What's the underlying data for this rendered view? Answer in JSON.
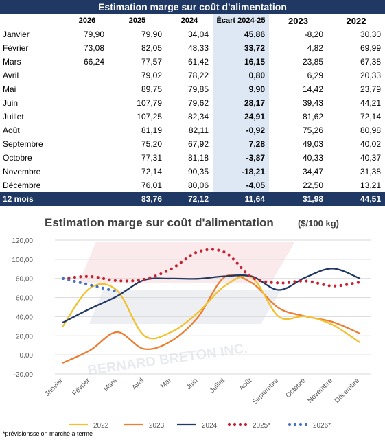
{
  "table": {
    "title": "Estimation marge sur coût d'alimentation",
    "headers": {
      "month": "",
      "c2026": "2026",
      "c2025": "2025",
      "c2024": "2024",
      "ecart": "Écart 2024-25",
      "c2023": "2023",
      "c2022": "2022"
    },
    "rows": [
      {
        "month": "Janvier",
        "c2026": "79,90",
        "c2025": "79,90",
        "c2024": "34,04",
        "ecart": "45,86",
        "c2023": "-8,20",
        "c2022": "30,30"
      },
      {
        "month": "Février",
        "c2026": "73,08",
        "c2025": "82,05",
        "c2024": "48,33",
        "ecart": "33,72",
        "c2023": "4,82",
        "c2022": "69,99"
      },
      {
        "month": "Mars",
        "c2026": "66,24",
        "c2025": "77,57",
        "c2024": "61,42",
        "ecart": "16,15",
        "c2023": "23,85",
        "c2022": "67,38"
      },
      {
        "month": "Avril",
        "c2026": "",
        "c2025": "79,02",
        "c2024": "78,22",
        "ecart": "0,80",
        "c2023": "6,29",
        "c2022": "20,33"
      },
      {
        "month": "Mai",
        "c2026": "",
        "c2025": "89,75",
        "c2024": "79,85",
        "ecart": "9,90",
        "c2023": "14,42",
        "c2022": "23,79"
      },
      {
        "month": "Juin",
        "c2026": "",
        "c2025": "107,79",
        "c2024": "79,62",
        "ecart": "28,17",
        "c2023": "39,43",
        "c2022": "44,21"
      },
      {
        "month": "Juillet",
        "c2026": "",
        "c2025": "107,25",
        "c2024": "82,34",
        "ecart": "24,91",
        "c2023": "81,62",
        "c2022": "72,14"
      },
      {
        "month": "Août",
        "c2026": "",
        "c2025": "81,19",
        "c2024": "82,11",
        "ecart": "-0,92",
        "c2023": "75,26",
        "c2022": "80,98"
      },
      {
        "month": "Septembre",
        "c2026": "",
        "c2025": "75,20",
        "c2024": "67,92",
        "ecart": "7,28",
        "c2023": "49,03",
        "c2022": "40,02"
      },
      {
        "month": "Octobre",
        "c2026": "",
        "c2025": "77,31",
        "c2024": "81,18",
        "ecart": "-3,87",
        "c2023": "40,33",
        "c2022": "40,37"
      },
      {
        "month": "Novembre",
        "c2026": "",
        "c2025": "72,14",
        "c2024": "90,35",
        "ecart": "-18,21",
        "c2023": "34,47",
        "c2022": "31,38"
      },
      {
        "month": "Décembre",
        "c2026": "",
        "c2025": "76,01",
        "c2024": "80,06",
        "ecart": "-4,05",
        "c2023": "22,50",
        "c2022": "13,21"
      }
    ],
    "total": {
      "month": "12 mois",
      "c2026": "",
      "c2025": "83,76",
      "c2024": "72,12",
      "ecart": "11,64",
      "c2023": "31,98",
      "c2022": "44,51"
    }
  },
  "chart_data": {
    "type": "line",
    "title": "Estimation  marge sur coût d'alimentation",
    "subtitle": "($/100 kg)",
    "categories": [
      "Janvier",
      "Février",
      "Mars",
      "Avril",
      "Mai",
      "Juin",
      "Juillet",
      "Août",
      "Septembre",
      "Octobre",
      "Novembre",
      "Décembre"
    ],
    "ylim": [
      -20,
      120
    ],
    "yticks": [
      "120,00",
      "100,00",
      "80,00",
      "60,00",
      "40,00",
      "20,00",
      "0,00",
      "-20,00"
    ],
    "ytick_values": [
      120,
      100,
      80,
      60,
      40,
      20,
      0,
      -20
    ],
    "grid": true,
    "legend_position": "bottom",
    "series": [
      {
        "name": "2022",
        "style": "line",
        "color": "#f2c12e",
        "values": [
          30.3,
          69.99,
          67.38,
          20.33,
          23.79,
          44.21,
          72.14,
          80.98,
          40.02,
          40.37,
          31.38,
          13.21
        ]
      },
      {
        "name": "2023",
        "style": "line",
        "color": "#ed7d31",
        "values": [
          -8.2,
          4.82,
          23.85,
          6.29,
          14.42,
          39.43,
          81.62,
          75.26,
          49.03,
          40.33,
          34.47,
          22.5
        ]
      },
      {
        "name": "2024",
        "style": "line",
        "color": "#1f3864",
        "values": [
          34.04,
          48.33,
          61.42,
          78.22,
          79.85,
          79.62,
          82.34,
          82.11,
          67.92,
          81.18,
          90.35,
          80.06
        ]
      },
      {
        "name": "2025*",
        "style": "dotted",
        "color": "#c8202f",
        "values": [
          79.9,
          82.05,
          77.57,
          79.02,
          89.75,
          107.79,
          107.25,
          81.19,
          75.2,
          77.31,
          72.14,
          76.01
        ]
      },
      {
        "name": "2026*",
        "style": "dotted",
        "color": "#4472c4",
        "values": [
          79.9,
          73.08,
          66.24,
          null,
          null,
          null,
          null,
          null,
          null,
          null,
          null,
          null
        ]
      }
    ],
    "footnote": "*prévisionsselon marché à terme",
    "watermark": "BERNARD BRETON INC."
  }
}
